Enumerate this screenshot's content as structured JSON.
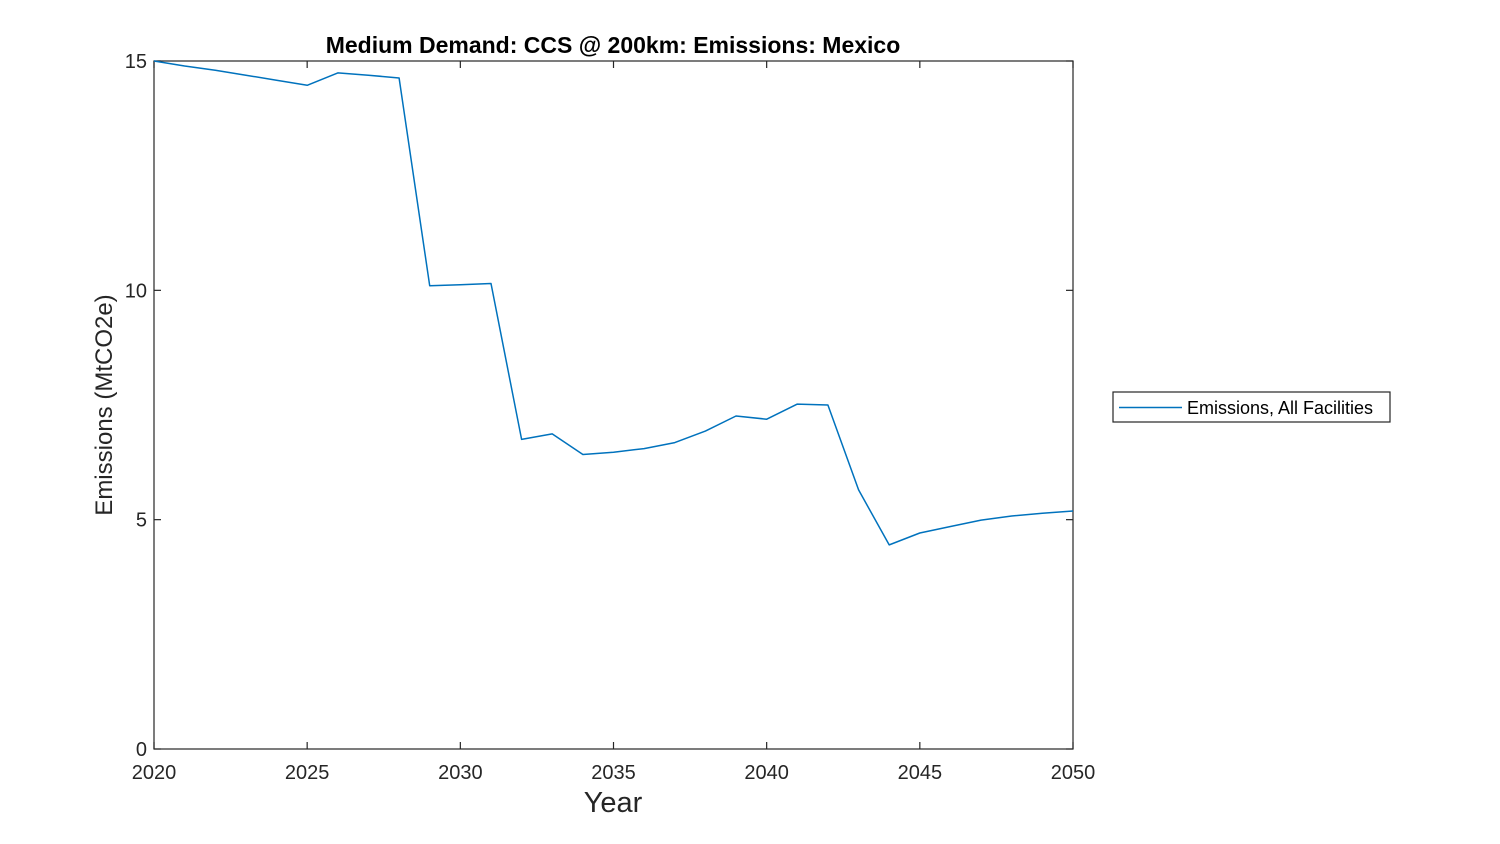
{
  "chart_data": {
    "type": "line",
    "title": "Medium Demand: CCS @ 200km: Emissions: Mexico",
    "xlabel": "Year",
    "ylabel": "Emissions (MtCO2e)",
    "xlim": [
      2020,
      2050
    ],
    "ylim": [
      0,
      15
    ],
    "x_ticks": [
      2020,
      2025,
      2030,
      2035,
      2040,
      2045,
      2050
    ],
    "y_ticks": [
      0,
      5,
      10,
      15
    ],
    "grid": false,
    "legend": {
      "position": "outside-right",
      "entries": [
        "Emissions, All Facilities"
      ]
    },
    "series": [
      {
        "name": "Emissions, All Facilities",
        "color": "#0072BD",
        "x": [
          2020,
          2021,
          2022,
          2023,
          2024,
          2025,
          2026,
          2027,
          2028,
          2029,
          2030,
          2031,
          2032,
          2033,
          2034,
          2035,
          2036,
          2037,
          2038,
          2039,
          2040,
          2041,
          2042,
          2043,
          2044,
          2045,
          2046,
          2047,
          2048,
          2049,
          2050
        ],
        "y": [
          15.0,
          14.89,
          14.8,
          14.69,
          14.58,
          14.47,
          14.74,
          14.69,
          14.63,
          10.1,
          10.12,
          10.15,
          6.75,
          6.87,
          6.42,
          6.47,
          6.55,
          6.68,
          6.93,
          7.26,
          7.19,
          7.52,
          7.5,
          5.65,
          4.45,
          4.71,
          4.85,
          4.99,
          5.08,
          5.14,
          5.19
        ]
      }
    ]
  }
}
